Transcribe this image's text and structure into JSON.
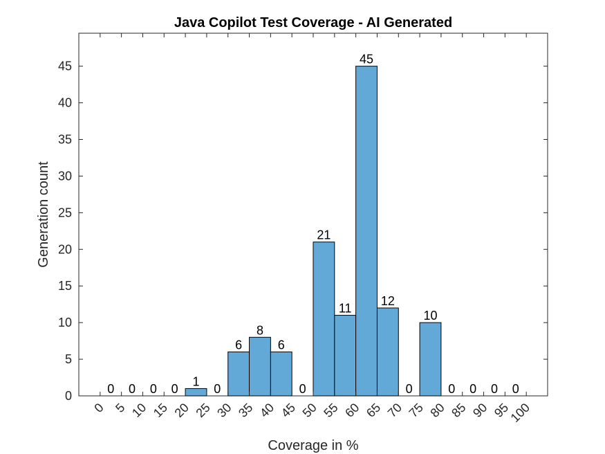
{
  "chart_data": {
    "type": "bar",
    "title": "Java Copilot Test Coverage - AI Generated",
    "xlabel": "Coverage in %",
    "ylabel": "Generation count",
    "categories": [
      "0",
      "5",
      "10",
      "15",
      "20",
      "25",
      "30",
      "35",
      "40",
      "45",
      "50",
      "55",
      "60",
      "65",
      "70",
      "75",
      "80",
      "85",
      "90",
      "95"
    ],
    "values": [
      0,
      0,
      0,
      0,
      1,
      0,
      6,
      8,
      6,
      0,
      21,
      11,
      45,
      12,
      0,
      10,
      0,
      0,
      0,
      0
    ],
    "x_ticks": [
      "0",
      "5",
      "10",
      "15",
      "20",
      "25",
      "30",
      "35",
      "40",
      "45",
      "50",
      "55",
      "60",
      "65",
      "70",
      "75",
      "80",
      "85",
      "90",
      "95",
      "100"
    ],
    "y_ticks": [
      "0",
      "5",
      "10",
      "15",
      "20",
      "25",
      "30",
      "35",
      "40",
      "45"
    ],
    "xlim": [
      -5,
      105
    ],
    "ylim": [
      0,
      49.5
    ],
    "bar_color": "#63a9d7",
    "bar_edge_color": "#000000",
    "grid": false,
    "legend": "none"
  }
}
